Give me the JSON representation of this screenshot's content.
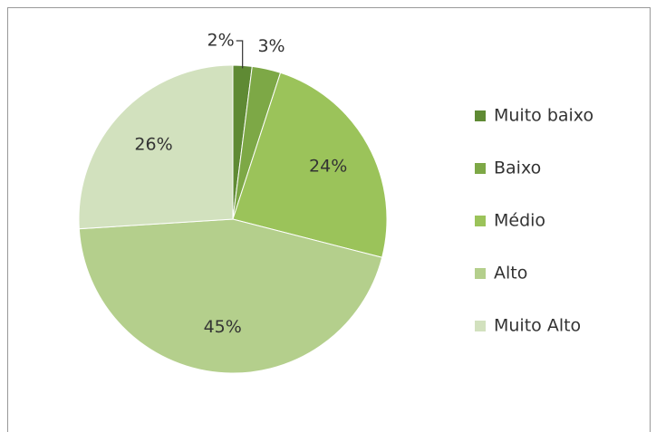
{
  "chart_data": {
    "type": "pie",
    "categories": [
      "Muito baixo",
      "Baixo",
      "Médio",
      "Alto",
      "Muito Alto"
    ],
    "values": [
      2,
      3,
      24,
      45,
      26
    ],
    "value_labels": [
      "2%",
      "3%",
      "24%",
      "45%",
      "26%"
    ],
    "colors": [
      "#5f8a34",
      "#7da846",
      "#9bc35a",
      "#b4cf8c",
      "#d2e1be"
    ],
    "legend": "right"
  }
}
